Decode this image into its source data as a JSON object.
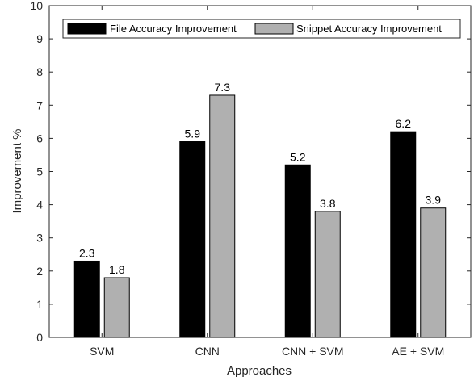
{
  "chart_data": {
    "type": "bar",
    "categories": [
      "SVM",
      "CNN",
      "CNN + SVM",
      "AE + SVM"
    ],
    "series": [
      {
        "name": "File Accuracy Improvement",
        "values": [
          2.3,
          5.9,
          5.2,
          6.2
        ],
        "color": "#000000"
      },
      {
        "name": "Snippet Accuracy Improvement",
        "values": [
          1.8,
          7.3,
          3.8,
          3.9
        ],
        "color": "#b0b0b0"
      }
    ],
    "data_labels": [
      [
        "2.3",
        "5.9",
        "5.2",
        "6.2"
      ],
      [
        "1.8",
        "7.3",
        "3.8",
        "3.9"
      ]
    ],
    "y_ticks": [
      0,
      1,
      2,
      3,
      4,
      5,
      6,
      7,
      8,
      9,
      10
    ],
    "xlabel": "Approaches",
    "ylabel": "Improvement %",
    "ylim": [
      0,
      10
    ],
    "grid": false,
    "legend_position": "top"
  }
}
